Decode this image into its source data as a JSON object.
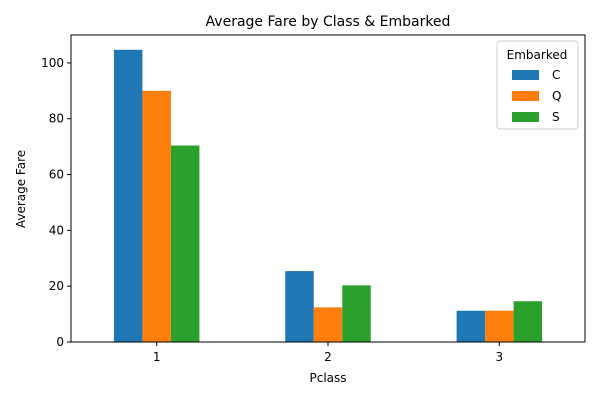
{
  "chart_data": {
    "type": "bar",
    "title": "Average Fare by Class & Embarked",
    "xlabel": "Pclass",
    "ylabel": "Average Fare",
    "categories": [
      "1",
      "2",
      "3"
    ],
    "series": [
      {
        "name": "C",
        "color": "#1f77b4",
        "values": [
          104.7,
          25.4,
          11.2
        ]
      },
      {
        "name": "Q",
        "color": "#ff7f0e",
        "values": [
          90.0,
          12.4,
          11.2
        ]
      },
      {
        "name": "S",
        "color": "#2ca02c",
        "values": [
          70.4,
          20.3,
          14.6
        ]
      }
    ],
    "ylim": [
      0,
      110
    ],
    "yticks": [
      0,
      20,
      40,
      60,
      80,
      100
    ],
    "grid": false,
    "legend": {
      "title": "Embarked",
      "placement": "top-right"
    }
  }
}
